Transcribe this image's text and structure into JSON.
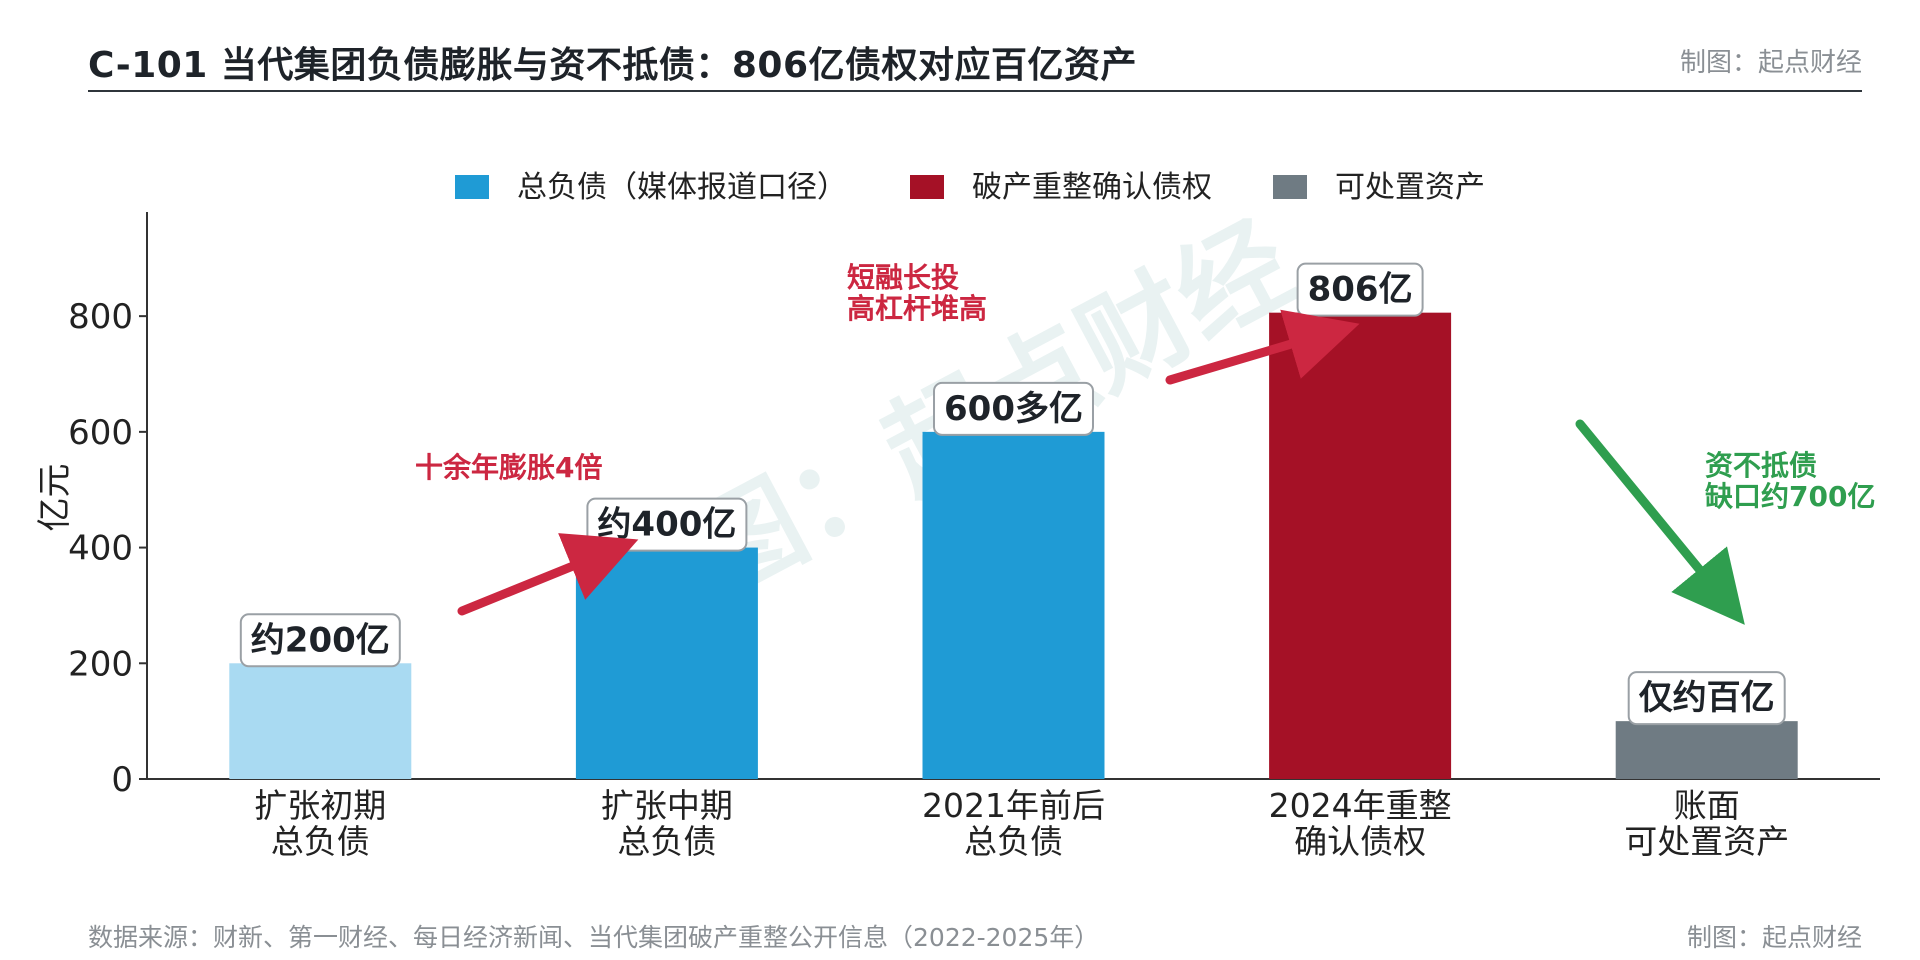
{
  "header": {
    "title": "C-101 当代集团负债膨胀与资不抵债：806亿债权对应百亿资产",
    "credit": "制图：起点财经"
  },
  "footer": {
    "source": "数据来源：财新、第一财经、每日经济新闻、当代集团破产重整公开信息（2022-2025年）",
    "credit": "制图：起点财经"
  },
  "watermark": "制图：起点财经",
  "colors": {
    "light_blue": "#a9daf2",
    "blue": "#1f9bd5",
    "red": "#a51126",
    "gray": "#6f7b83",
    "arrow_red": "#cc2741",
    "arrow_green": "#2f9e4f"
  },
  "chart_data": {
    "type": "bar",
    "ylabel": "亿元",
    "ylim": [
      0,
      980
    ],
    "yticks": [
      0,
      200,
      400,
      600,
      800
    ],
    "legend": [
      {
        "label": "总负债（媒体报道口径）",
        "color": "#1f9bd5"
      },
      {
        "label": "破产重整确认债权",
        "color": "#a51126"
      },
      {
        "label": "可处置资产",
        "color": "#6f7b83"
      }
    ],
    "categories": [
      [
        "扩张初期",
        "总负债"
      ],
      [
        "扩张中期",
        "总负债"
      ],
      [
        "2021年前后",
        "总负债"
      ],
      [
        "2024年重整",
        "确认债权"
      ],
      [
        "账面",
        "可处置资产"
      ]
    ],
    "values": [
      200,
      400,
      600,
      806,
      100
    ],
    "bar_colors": [
      "#a9daf2",
      "#1f9bd5",
      "#1f9bd5",
      "#a51126",
      "#6f7b83"
    ],
    "data_labels": [
      "约200亿",
      "约400亿",
      "600多亿",
      "806亿",
      "仅约百亿"
    ],
    "annotations": [
      {
        "text": [
          "十余年膨胀4倍"
        ],
        "style": "red"
      },
      {
        "text": [
          "短融长投",
          "高杠杆堆高"
        ],
        "style": "red"
      },
      {
        "text": [
          "资不抵债",
          "缺口约700亿"
        ],
        "style": "green"
      }
    ]
  }
}
